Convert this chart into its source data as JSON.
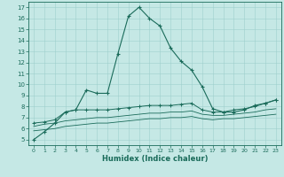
{
  "xlabel": "Humidex (Indice chaleur)",
  "xlim": [
    -0.5,
    23.5
  ],
  "ylim": [
    4.5,
    17.5
  ],
  "xticks": [
    0,
    1,
    2,
    3,
    4,
    5,
    6,
    7,
    8,
    9,
    10,
    11,
    12,
    13,
    14,
    15,
    16,
    17,
    18,
    19,
    20,
    21,
    22,
    23
  ],
  "yticks": [
    5,
    6,
    7,
    8,
    9,
    10,
    11,
    12,
    13,
    14,
    15,
    16,
    17
  ],
  "bg_color": "#c5e8e5",
  "grid_color": "#9ecfcc",
  "line_color": "#1a6b5a",
  "line1": {
    "x": [
      0,
      1,
      2,
      3,
      4,
      5,
      6,
      7,
      8,
      9,
      10,
      11,
      12,
      13,
      14,
      15,
      16,
      17,
      18,
      19,
      20,
      21,
      22,
      23
    ],
    "y": [
      5.0,
      5.7,
      6.5,
      7.5,
      7.7,
      9.5,
      9.2,
      9.2,
      12.8,
      16.2,
      17.0,
      16.0,
      15.3,
      13.3,
      12.1,
      11.3,
      9.8,
      7.8,
      7.5,
      7.5,
      7.7,
      8.1,
      8.3,
      8.6
    ]
  },
  "line2": {
    "x": [
      0,
      1,
      2,
      3,
      4,
      5,
      6,
      7,
      8,
      9,
      10,
      11,
      12,
      13,
      14,
      15,
      16,
      17,
      18,
      19,
      20,
      21,
      22,
      23
    ],
    "y": [
      6.5,
      6.6,
      6.8,
      7.5,
      7.7,
      7.7,
      7.7,
      7.7,
      7.8,
      7.9,
      8.0,
      8.1,
      8.1,
      8.1,
      8.2,
      8.3,
      7.7,
      7.5,
      7.5,
      7.7,
      7.8,
      8.0,
      8.3,
      8.6
    ]
  },
  "line3": {
    "x": [
      0,
      1,
      2,
      3,
      4,
      5,
      6,
      7,
      8,
      9,
      10,
      11,
      12,
      13,
      14,
      15,
      16,
      17,
      18,
      19,
      20,
      21,
      22,
      23
    ],
    "y": [
      6.2,
      6.4,
      6.5,
      6.7,
      6.8,
      6.9,
      7.0,
      7.0,
      7.1,
      7.2,
      7.3,
      7.4,
      7.4,
      7.5,
      7.5,
      7.6,
      7.3,
      7.2,
      7.2,
      7.3,
      7.4,
      7.5,
      7.7,
      7.8
    ]
  },
  "line4": {
    "x": [
      0,
      1,
      2,
      3,
      4,
      5,
      6,
      7,
      8,
      9,
      10,
      11,
      12,
      13,
      14,
      15,
      16,
      17,
      18,
      19,
      20,
      21,
      22,
      23
    ],
    "y": [
      5.8,
      5.9,
      6.0,
      6.2,
      6.3,
      6.4,
      6.5,
      6.5,
      6.6,
      6.7,
      6.8,
      6.9,
      6.9,
      7.0,
      7.0,
      7.1,
      6.9,
      6.8,
      6.9,
      6.9,
      7.0,
      7.1,
      7.2,
      7.3
    ]
  }
}
